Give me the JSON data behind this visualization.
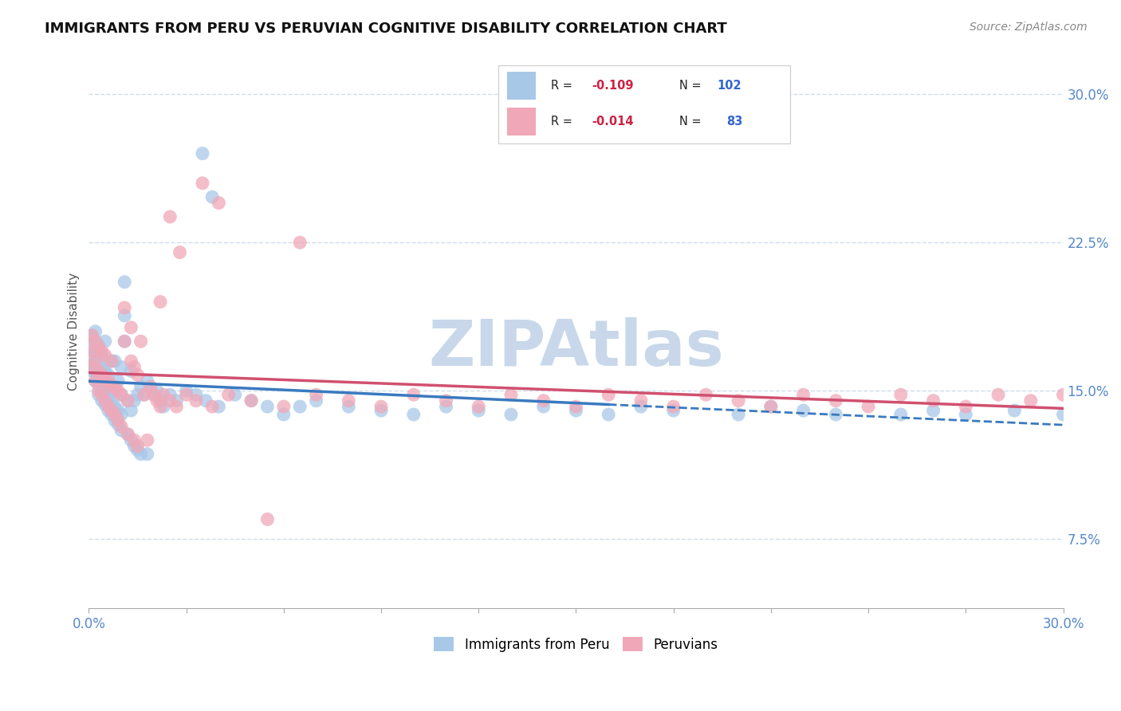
{
  "title": "IMMIGRANTS FROM PERU VS PERUVIAN COGNITIVE DISABILITY CORRELATION CHART",
  "source": "Source: ZipAtlas.com",
  "ylabel": "Cognitive Disability",
  "xlim": [
    0.0,
    0.3
  ],
  "ylim": [
    0.04,
    0.32
  ],
  "xticks": [
    0.0,
    0.03,
    0.06,
    0.09,
    0.12,
    0.15,
    0.18,
    0.21,
    0.24,
    0.27,
    0.3
  ],
  "xticklabels": [
    "0.0%",
    "",
    "",
    "",
    "",
    "",
    "",
    "",
    "",
    "",
    "30.0%"
  ],
  "ytick_positions": [
    0.075,
    0.15,
    0.225,
    0.3
  ],
  "ytick_labels": [
    "7.5%",
    "15.0%",
    "22.5%",
    "30.0%"
  ],
  "legend_r1": "-0.109",
  "legend_n1": "102",
  "legend_r2": "-0.014",
  "legend_n2": "83",
  "color_blue": "#a8c8e8",
  "color_pink": "#f0a8b8",
  "trend_color_blue": "#3a7abf",
  "trend_color_pink": "#d05070",
  "watermark": "ZIPAtlas",
  "watermark_color": "#c8d8ea",
  "grid_color": "#d0dcea",
  "background_color": "#ffffff",
  "blue_scatter_x": [
    0.001,
    0.001,
    0.001,
    0.001,
    0.001,
    0.002,
    0.002,
    0.002,
    0.002,
    0.002,
    0.002,
    0.003,
    0.003,
    0.003,
    0.003,
    0.003,
    0.003,
    0.004,
    0.004,
    0.004,
    0.004,
    0.004,
    0.005,
    0.005,
    0.005,
    0.005,
    0.005,
    0.006,
    0.006,
    0.006,
    0.006,
    0.007,
    0.007,
    0.007,
    0.007,
    0.008,
    0.008,
    0.008,
    0.008,
    0.009,
    0.009,
    0.009,
    0.01,
    0.01,
    0.01,
    0.01,
    0.011,
    0.011,
    0.011,
    0.012,
    0.012,
    0.013,
    0.013,
    0.013,
    0.014,
    0.014,
    0.015,
    0.015,
    0.016,
    0.016,
    0.017,
    0.018,
    0.018,
    0.019,
    0.02,
    0.021,
    0.022,
    0.023,
    0.025,
    0.027,
    0.03,
    0.033,
    0.036,
    0.04,
    0.045,
    0.05,
    0.055,
    0.06,
    0.065,
    0.07,
    0.08,
    0.09,
    0.1,
    0.11,
    0.12,
    0.13,
    0.14,
    0.15,
    0.16,
    0.17,
    0.18,
    0.2,
    0.21,
    0.22,
    0.23,
    0.25,
    0.26,
    0.27,
    0.285,
    0.3,
    0.035,
    0.038
  ],
  "blue_scatter_y": [
    0.16,
    0.163,
    0.167,
    0.172,
    0.178,
    0.155,
    0.16,
    0.165,
    0.17,
    0.175,
    0.18,
    0.148,
    0.153,
    0.158,
    0.163,
    0.168,
    0.173,
    0.145,
    0.15,
    0.156,
    0.162,
    0.168,
    0.143,
    0.148,
    0.154,
    0.16,
    0.175,
    0.14,
    0.146,
    0.152,
    0.158,
    0.138,
    0.144,
    0.15,
    0.165,
    0.135,
    0.142,
    0.15,
    0.165,
    0.133,
    0.14,
    0.155,
    0.13,
    0.138,
    0.148,
    0.162,
    0.175,
    0.188,
    0.205,
    0.128,
    0.145,
    0.125,
    0.14,
    0.16,
    0.122,
    0.145,
    0.12,
    0.148,
    0.118,
    0.152,
    0.148,
    0.118,
    0.155,
    0.152,
    0.148,
    0.15,
    0.145,
    0.142,
    0.148,
    0.145,
    0.15,
    0.148,
    0.145,
    0.142,
    0.148,
    0.145,
    0.142,
    0.138,
    0.142,
    0.145,
    0.142,
    0.14,
    0.138,
    0.142,
    0.14,
    0.138,
    0.142,
    0.14,
    0.138,
    0.142,
    0.14,
    0.138,
    0.142,
    0.14,
    0.138,
    0.138,
    0.14,
    0.138,
    0.14,
    0.138,
    0.27,
    0.248
  ],
  "pink_scatter_x": [
    0.001,
    0.001,
    0.001,
    0.002,
    0.002,
    0.002,
    0.003,
    0.003,
    0.003,
    0.004,
    0.004,
    0.004,
    0.005,
    0.005,
    0.005,
    0.006,
    0.006,
    0.007,
    0.007,
    0.007,
    0.008,
    0.008,
    0.009,
    0.009,
    0.01,
    0.01,
    0.011,
    0.011,
    0.012,
    0.012,
    0.013,
    0.013,
    0.014,
    0.014,
    0.015,
    0.015,
    0.016,
    0.017,
    0.018,
    0.019,
    0.02,
    0.021,
    0.022,
    0.023,
    0.025,
    0.027,
    0.03,
    0.033,
    0.038,
    0.043,
    0.05,
    0.06,
    0.07,
    0.08,
    0.09,
    0.1,
    0.11,
    0.12,
    0.13,
    0.14,
    0.15,
    0.16,
    0.17,
    0.18,
    0.19,
    0.2,
    0.21,
    0.22,
    0.23,
    0.24,
    0.25,
    0.26,
    0.27,
    0.28,
    0.29,
    0.3,
    0.035,
    0.04,
    0.055,
    0.065,
    0.025,
    0.028,
    0.022
  ],
  "pink_scatter_y": [
    0.162,
    0.17,
    0.178,
    0.155,
    0.165,
    0.175,
    0.15,
    0.16,
    0.172,
    0.148,
    0.158,
    0.17,
    0.145,
    0.155,
    0.168,
    0.142,
    0.155,
    0.14,
    0.152,
    0.165,
    0.138,
    0.152,
    0.135,
    0.15,
    0.132,
    0.148,
    0.175,
    0.192,
    0.128,
    0.145,
    0.165,
    0.182,
    0.125,
    0.162,
    0.122,
    0.158,
    0.175,
    0.148,
    0.125,
    0.152,
    0.148,
    0.145,
    0.142,
    0.148,
    0.145,
    0.142,
    0.148,
    0.145,
    0.142,
    0.148,
    0.145,
    0.142,
    0.148,
    0.145,
    0.142,
    0.148,
    0.145,
    0.142,
    0.148,
    0.145,
    0.142,
    0.148,
    0.145,
    0.142,
    0.148,
    0.145,
    0.142,
    0.148,
    0.145,
    0.142,
    0.148,
    0.145,
    0.142,
    0.148,
    0.145,
    0.148,
    0.255,
    0.245,
    0.085,
    0.225,
    0.238,
    0.22,
    0.195
  ]
}
